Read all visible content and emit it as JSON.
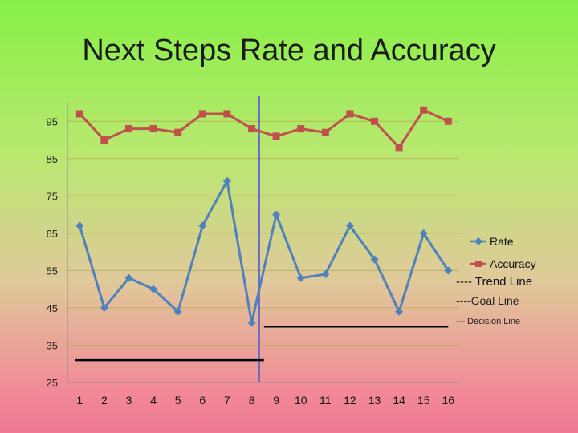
{
  "slide": {
    "title": "Next Steps Rate and Accuracy"
  },
  "colors": {
    "rate": "#4f81bd",
    "accuracy": "#c0504d",
    "grid": "#b9b25c",
    "decision_line": "#6a6ac8",
    "goal_line": "#000000"
  },
  "chart_data": {
    "type": "line",
    "title": "Next Steps Rate and Accuracy",
    "x": [
      1,
      2,
      3,
      4,
      5,
      6,
      7,
      8,
      9,
      10,
      11,
      12,
      13,
      14,
      15,
      16
    ],
    "x_tick_labels": [
      "1",
      "2",
      "3",
      "4",
      "5",
      "6",
      "7",
      "8",
      "9",
      "10",
      "11",
      "12",
      "13",
      "14",
      "15",
      "16"
    ],
    "y_tick_labels": [
      "25",
      "35",
      "45",
      "55",
      "65",
      "75",
      "85",
      "95"
    ],
    "ylim": [
      25,
      100
    ],
    "grid": true,
    "legend_position": "right",
    "series": [
      {
        "name": "Rate",
        "marker": "diamond",
        "x": [
          1,
          2,
          3,
          4,
          5,
          6,
          7,
          8,
          9,
          10,
          11,
          12,
          13,
          14,
          15,
          16
        ],
        "values": [
          67,
          45,
          53,
          50,
          44,
          67,
          79,
          41,
          70,
          53,
          54,
          67,
          58,
          44,
          65,
          55
        ]
      },
      {
        "name": "Accuracy",
        "marker": "square",
        "x": [
          1,
          2,
          3,
          4,
          5,
          6,
          7,
          8,
          9,
          10,
          11,
          12,
          13,
          14,
          15,
          16
        ],
        "values": [
          97,
          90,
          93,
          93,
          92,
          97,
          97,
          93,
          91,
          93,
          92,
          97,
          95,
          88,
          98,
          95
        ]
      }
    ],
    "goal_lines": [
      {
        "x_start": 0.8,
        "x_end": 8.5,
        "y": 31
      },
      {
        "x_start": 8.5,
        "x_end": 16.0,
        "y": 40
      }
    ],
    "decision_line": {
      "x": 8.3
    },
    "legend_notes": {
      "trend": "---- Trend Line",
      "goal": "----Goal Line",
      "decision": "--- Decision Line"
    }
  }
}
